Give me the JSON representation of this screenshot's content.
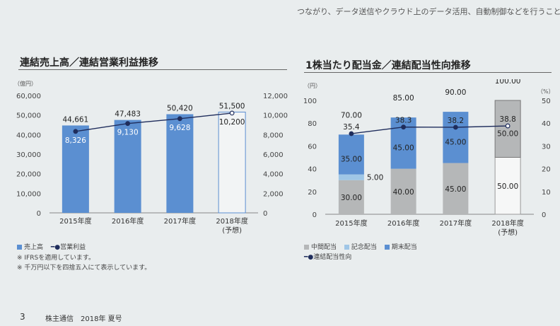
{
  "header_text": "つながり、データ送信やクラウド上のデータ活用、自動制御などを行うこと。",
  "left": {
    "title": "連結売上高／連結営業利益推移",
    "unit_left": "（億円）",
    "legend": {
      "sales": "売上高",
      "op": "営業利益"
    },
    "notes": [
      "※ IFRSを適用しています。",
      "※ 千万円以下を四捨五入にて表示しています。"
    ]
  },
  "right": {
    "title": "1株当たり配当金／連結配当性向推移",
    "unit_left": "（円）",
    "unit_right": "（%）",
    "legend": {
      "interim": "中間配当",
      "commemorative": "記念配当",
      "yearend": "期末配当",
      "payout": "連結配当性向"
    }
  },
  "footer": {
    "page": "3",
    "publication": "株主通信　2018年 夏号"
  },
  "colors": {
    "bar": "#5b8fd1",
    "bar_dark": "#4a7cc0",
    "line": "#1f2d5c",
    "gray": "#b5b7b8",
    "light_blue": "#9fc6e6",
    "forecast_bg": "#f2f4f5"
  },
  "chart_data": [
    {
      "type": "bar",
      "title": "連結売上高／連結営業利益推移",
      "categories": [
        "2015年度",
        "2016年度",
        "2017年度",
        "2018年度"
      ],
      "category_sub": [
        "",
        "",
        "",
        "(予想)"
      ],
      "forecast_index": 3,
      "ylim": [
        0,
        60000
      ],
      "yticks": [
        "0",
        "10,000",
        "20,000",
        "30,000",
        "40,000",
        "50,000",
        "60,000"
      ],
      "y2lim": [
        0,
        12000
      ],
      "y2ticks": [
        "0",
        "2,000",
        "4,000",
        "6,000",
        "8,000",
        "10,000",
        "12,000"
      ],
      "series": [
        {
          "name": "売上高",
          "type": "bar",
          "values": [
            44661,
            47483,
            50420,
            51500
          ],
          "labels": [
            "44,661",
            "47,483",
            "50,420",
            "51,500"
          ]
        },
        {
          "name": "営業利益",
          "type": "line",
          "axis": "right",
          "values": [
            8326,
            9130,
            9628,
            10200
          ],
          "labels": [
            "8,326",
            "9,130",
            "9,628",
            "10,200"
          ]
        }
      ]
    },
    {
      "type": "bar",
      "title": "1株当たり配当金／連結配当性向推移",
      "categories": [
        "2015年度",
        "2016年度",
        "2017年度",
        "2018年度"
      ],
      "category_sub": [
        "",
        "",
        "",
        "(予想)"
      ],
      "forecast_index": 3,
      "ylim": [
        0,
        100
      ],
      "yticks": [
        "0",
        "20",
        "40",
        "60",
        "80",
        "100"
      ],
      "y2lim": [
        0,
        50
      ],
      "y2ticks": [
        "0",
        "10",
        "20",
        "30",
        "40",
        "50"
      ],
      "series": [
        {
          "name": "中間配当",
          "stack": true,
          "values": [
            30,
            40,
            45,
            50
          ],
          "labels": [
            "30.00",
            "40.00",
            "45.00",
            "50.00"
          ]
        },
        {
          "name": "記念配当",
          "stack": true,
          "values": [
            5,
            0,
            0,
            0
          ],
          "labels": [
            "5.00",
            "",
            "",
            ""
          ]
        },
        {
          "name": "期末配当",
          "stack": true,
          "values": [
            35,
            45,
            45,
            50
          ],
          "labels": [
            "35.00",
            "45.00",
            "45.00",
            "50.00"
          ]
        },
        {
          "name": "連結配当性向",
          "type": "line",
          "axis": "right",
          "values": [
            35.4,
            38.3,
            38.2,
            38.8
          ],
          "labels": [
            "35.4",
            "38.3",
            "38.2",
            "38.8"
          ]
        }
      ],
      "totals": [
        "70.00",
        "85.00",
        "90.00",
        "100.00"
      ]
    }
  ]
}
